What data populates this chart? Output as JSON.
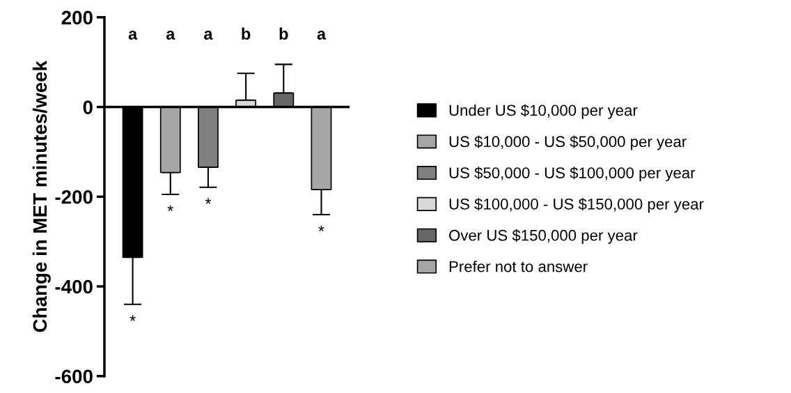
{
  "chart_data": {
    "type": "bar",
    "ylabel": "Change in MET minutes/week",
    "categories": [
      null,
      null,
      null,
      null,
      null,
      null
    ],
    "stacked": true,
    "series": [
      {
        "name": "Under US $10,000 per year",
        "color": "#000000",
        "values": [
          -335,
          null,
          null,
          null,
          null,
          null
        ],
        "errors": [
          [
            -440,
            -335
          ],
          null,
          null,
          null,
          null,
          null
        ]
      },
      {
        "name": "US $10,000 - US $50,000 per year",
        "color": "#a6a6a6",
        "values": [
          null,
          -146,
          null,
          null,
          null,
          null
        ],
        "errors": [
          null,
          [
            -195,
            -146
          ],
          null,
          null,
          null,
          null
        ]
      },
      {
        "name": "US $50,000 - US $100,000 per year",
        "color": "#808080",
        "values": [
          null,
          null,
          -134,
          null,
          null,
          null
        ],
        "errors": [
          null,
          null,
          [
            -179,
            -134
          ],
          null,
          null,
          null
        ]
      },
      {
        "name": "US $100,000 - US $150,000 per year",
        "color": "#d9d9d9",
        "values": [
          null,
          null,
          null,
          15,
          null,
          null
        ],
        "errors": [
          null,
          null,
          null,
          [
            15,
            75
          ],
          null,
          null
        ]
      },
      {
        "name": "Over US $150,000 per year",
        "color": "#666666",
        "values": [
          null,
          null,
          null,
          null,
          31,
          null
        ],
        "errors": [
          null,
          null,
          null,
          null,
          [
            31,
            95
          ],
          null
        ]
      },
      {
        "name": "Prefer not to answer",
        "color": "#a6a6a6",
        "values": [
          null,
          null,
          null,
          null,
          null,
          -184
        ],
        "errors": [
          null,
          null,
          null,
          null,
          null,
          [
            -240,
            -184
          ]
        ]
      }
    ],
    "ylim": [
      -600,
      200
    ],
    "yticks": [
      -600,
      -400,
      -200,
      0,
      200
    ],
    "ref_lines": [
      {
        "axis": "y",
        "value": 0,
        "color": "#000000"
      }
    ],
    "tick_labels": "y",
    "legend": "right",
    "annotations": [
      "a",
      "a",
      "a",
      "b",
      "b",
      "a",
      "*",
      "*",
      "*",
      "*"
    ]
  }
}
